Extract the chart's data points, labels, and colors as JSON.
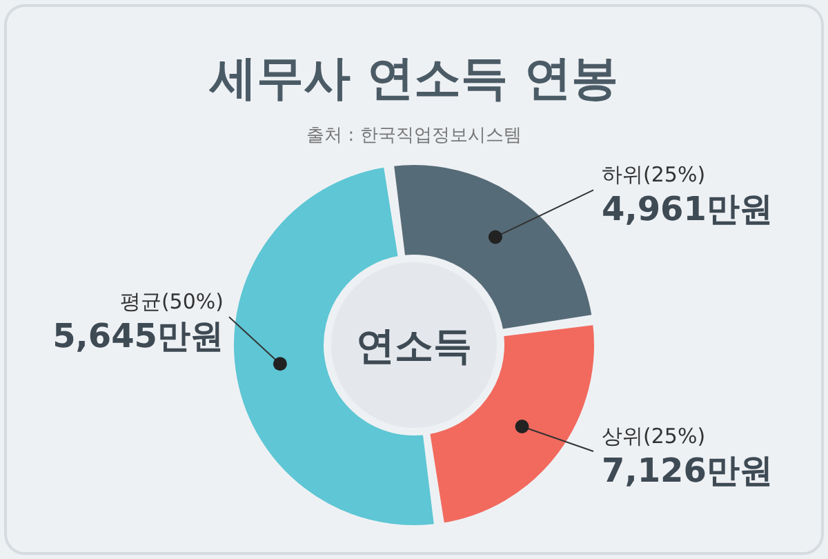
{
  "chart_data": {
    "type": "donut",
    "title": "세무사 연소득 연봉",
    "annotations": [
      "출처 : 한국직업정보시스템",
      "연소득",
      "4,961만원",
      "7,126만원",
      "5,645만원"
    ],
    "categories": [
      "하위(25%)",
      "상위(25%)",
      "평균(50%)"
    ],
    "values": [
      25,
      25,
      50
    ],
    "colors": [
      "#566b78",
      "#f26a5e",
      "#5ec6d4"
    ]
  }
}
